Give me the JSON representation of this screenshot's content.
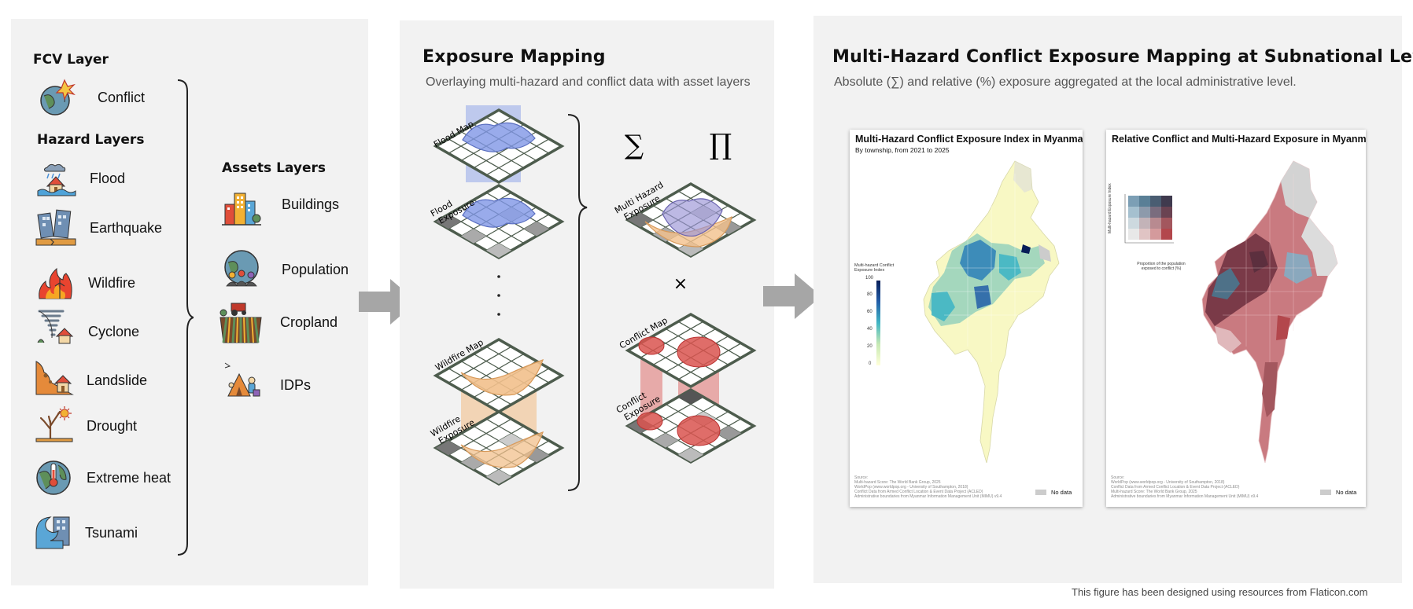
{
  "inputs": {
    "fcv_header": "FCV Layer",
    "fcv_items": [
      {
        "label": "Conflict",
        "icon": "conflict-icon"
      }
    ],
    "hazard_header": "Hazard Layers",
    "hazard_items": [
      {
        "label": "Flood",
        "icon": "flood-icon"
      },
      {
        "label": "Earthquake",
        "icon": "earthquake-icon"
      },
      {
        "label": "Wildfire",
        "icon": "wildfire-icon"
      },
      {
        "label": "Cyclone",
        "icon": "cyclone-icon"
      },
      {
        "label": "Landslide",
        "icon": "landslide-icon"
      },
      {
        "label": "Drought",
        "icon": "drought-icon"
      },
      {
        "label": "Extreme heat",
        "icon": "extreme-heat-icon"
      },
      {
        "label": "Tsunami",
        "icon": "tsunami-icon"
      }
    ],
    "assets_header": "Assets Layers",
    "asset_items": [
      {
        "label": "Buildings",
        "icon": "buildings-icon"
      },
      {
        "label": "Population",
        "icon": "population-icon"
      },
      {
        "label": "Cropland",
        "icon": "cropland-icon"
      },
      {
        "label": "IDPs",
        "icon": "idps-icon"
      }
    ]
  },
  "mapping": {
    "title": "Exposure Mapping",
    "subtitle": "Overlaying multi-hazard and conflict data with asset layers",
    "layers": {
      "flood_map": "Flood Map",
      "flood_exposure": "Flood Exposure",
      "wildfire_map": "Wildfire Map",
      "wildfire_exposure": "Wildfire Exposure",
      "multi_hazard_exposure": "Multi Hazard Exposure",
      "conflict_map": "Conflict Map",
      "conflict_exposure": "Conflict Exposure"
    },
    "operators": {
      "sum": "∑",
      "product": "∏",
      "times": "×"
    },
    "ellipsis": "·"
  },
  "results": {
    "title": "Multi-Hazard Conflict Exposure Mapping at Subnational Levels",
    "subtitle": "Absolute (∑) and relative (%) exposure aggregated at the local administrative level.",
    "map1": {
      "title": "Multi-Hazard Conflict Exposure Index in Myanmar",
      "subtitle": "By township, from 2021 to 2025",
      "legend_title": "Multi-hazard Conflict Exposure Index",
      "legend_ticks": [
        "100",
        "80",
        "60",
        "40",
        "20",
        "0"
      ],
      "source_lines": [
        "Source:",
        "Multi-hazard Score: The World Bank Group, 2025",
        "WorldPop (www.worldpop.org - University of Southampton, 2018)",
        "Conflict Data from Armed Conflict Location & Event Data Project (ACLED)",
        "Administrative boundaries from Myanmar Information Management Unit (MIMU) v9.4"
      ],
      "nodata": "No data"
    },
    "map2": {
      "title": "Relative Conflict and Multi-Hazard Exposure in Myanmar",
      "legend_y_label": "Multi-hazard Exposure Index",
      "legend_x_label": "Proportion of the population exposed to conflict (%)",
      "source_lines": [
        "Source:",
        "WorldPop (www.worldpop.org - University of Southampton, 2018)",
        "Conflict Data from Armed Conflict Location & Event Data Project (ACLED)",
        "Multi-hazard Score: The World Bank Group, 2025",
        "Administrative boundaries from Myanmar Information Management Unit (MIMU) v9.4"
      ],
      "nodata": "No data"
    }
  },
  "footer": "This figure has been designed using resources from Flaticon.com",
  "colors": {
    "panel_bg": "#f2f2f2",
    "arrow": "#a6a6a6",
    "flood": "#7f96e6",
    "wildfire": "#f2c08c",
    "conflict": "#d9534f",
    "grid": "#4d5c4d",
    "ylgnbu_low": "#ffffd9",
    "ylgnbu_high": "#081d58",
    "bivar_red": "#a33a3f",
    "bivar_blue": "#3f6c86"
  }
}
